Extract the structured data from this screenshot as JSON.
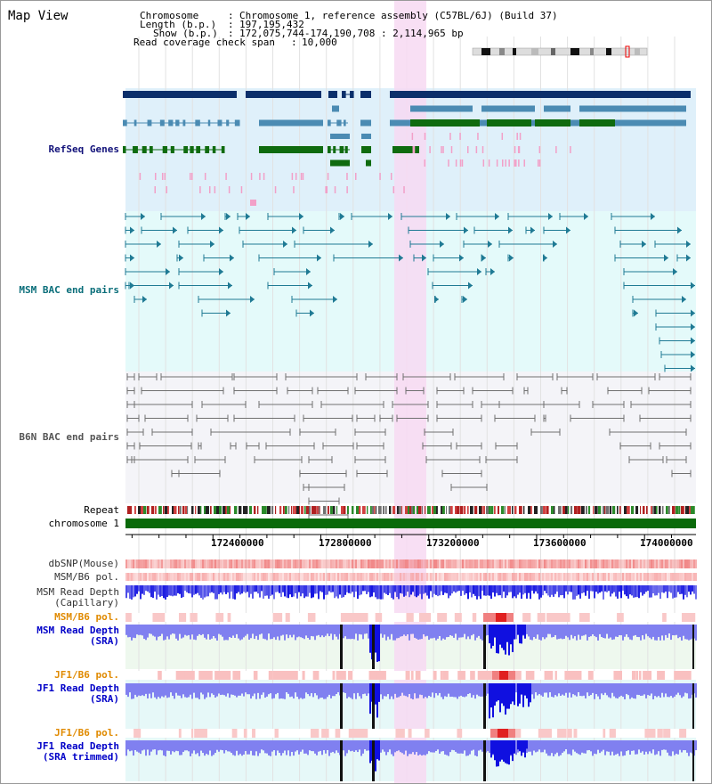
{
  "page": {
    "title": "Map View"
  },
  "info": {
    "chromosome_key": "Chromosome",
    "chromosome_value": "Chromosome 1, reference assembly (C57BL/6J) (Build 37)",
    "length_key": "Length (b.p.)",
    "length_value": "197,195,432",
    "show_key": "Show (b.p.)",
    "show_value": "172,075,744-174,190,708 : 2,114,965 bp",
    "span_key": "Read coverage check span",
    "span_value": "10,000"
  },
  "tracks": {
    "refseq": "RefSeq Genes",
    "msm_bac": "MSM BAC end pairs",
    "b6n_bac": "B6N BAC end pairs",
    "repeat": "Repeat",
    "chromosome": "chromosome 1",
    "dbsnp": "dbSNP(Mouse)",
    "msm_b6_pol_1": "MSM/B6 pol.",
    "msm_depth_cap_1": "MSM Read Depth",
    "msm_depth_cap_2": "(Capillary)",
    "msm_b6_pol_2": "MSM/B6 pol.",
    "msm_depth_sra_1": "MSM Read Depth",
    "msm_depth_sra_2": "(SRA)",
    "jf1_b6_pol_1": "JF1/B6 pol.",
    "jf1_depth_sra_1": "JF1 Read Depth",
    "jf1_depth_sra_2": "(SRA)",
    "jf1_b6_pol_2": "JF1/B6 pol.",
    "jf1_depth_trim_1": "JF1 Read Depth",
    "jf1_depth_trim_2": "(SRA trimmed)"
  },
  "axis": {
    "ticks": [
      "172400000",
      "172800000",
      "173200000",
      "173600000",
      "174000000"
    ]
  },
  "colors": {
    "refseq_bg": "#dff0fa",
    "msm_bg": "#e4fafa",
    "b6n_bg": "#f4f4f8",
    "highlight": "#f7d9f2",
    "gene_navy": "#0b2f6b",
    "gene_steel": "#4b8bb3",
    "gene_green": "#0f6b0f",
    "msm_pair": "#1f7a94",
    "b6n_pair": "#707070",
    "chromosome_bar": "#0a6a0a",
    "dbsnp": "#f08080",
    "depth_blue": "#1010e0",
    "depth_light": "#8080f0",
    "pol_red": "#e02020",
    "label_navy": "#12127a",
    "label_teal": "#0a6e7a",
    "label_orange": "#e08a00",
    "label_blue": "#0000c8"
  }
}
